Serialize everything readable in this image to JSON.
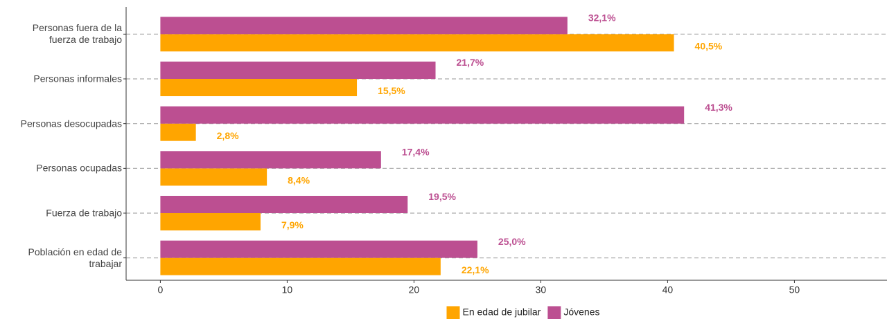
{
  "chart_data": {
    "type": "hbar",
    "categories": [
      "Personas fuera de la\nfuerza de trabajo",
      "Personas informales",
      "Personas desocupadas",
      "Personas ocupadas",
      "Fuerza de trabajo",
      "Población en edad de\ntrabajar"
    ],
    "series": [
      {
        "name": "En edad de jubilar",
        "color": "#ffa500",
        "values": [
          40.5,
          15.5,
          2.8,
          8.4,
          7.9,
          22.1
        ],
        "value_labels": [
          "40,5%",
          "15,5%",
          "2,8%",
          "8,4%",
          "7,9%",
          "22,1%"
        ]
      },
      {
        "name": "Jóvenes",
        "color": "#bc4f91",
        "values": [
          32.1,
          21.7,
          41.3,
          17.4,
          19.5,
          25.0
        ],
        "value_labels": [
          "32,1%",
          "21,7%",
          "41,3%",
          "17,4%",
          "19,5%",
          "25,0%"
        ]
      }
    ],
    "xlim": [
      -2.7,
      57.3
    ],
    "xticks": [
      0,
      10,
      20,
      30,
      40,
      50
    ],
    "grid": true,
    "legend": "bottom"
  }
}
